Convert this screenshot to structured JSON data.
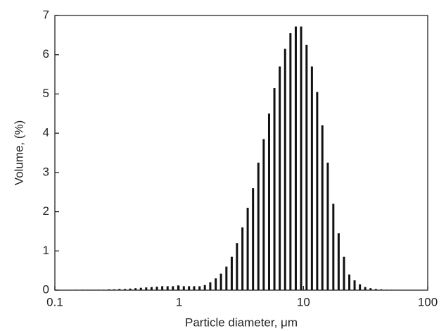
{
  "chart_data": {
    "type": "bar",
    "x_label": "Particle diameter, μm",
    "y_label": "Volume, (%)",
    "x": [
      0.15,
      0.166,
      0.183,
      0.202,
      0.223,
      0.246,
      0.272,
      0.3,
      0.331,
      0.366,
      0.404,
      0.446,
      0.492,
      0.543,
      0.6,
      0.662,
      0.731,
      0.807,
      0.891,
      0.984,
      1.09,
      1.2,
      1.32,
      1.46,
      1.61,
      1.78,
      1.97,
      2.17,
      2.4,
      2.65,
      2.92,
      3.23,
      3.56,
      3.93,
      4.34,
      4.79,
      5.29,
      5.84,
      6.45,
      7.12,
      7.86,
      8.68,
      9.58,
      10.6,
      11.7,
      12.9,
      14.2,
      15.7,
      17.4,
      19.2,
      21.2,
      23.4,
      25.8,
      28.5,
      31.4,
      34.7,
      38.3,
      42.3,
      46.7,
      51.6
    ],
    "values": [
      0.01,
      0.01,
      0.01,
      0.01,
      0.01,
      0.01,
      0.02,
      0.02,
      0.03,
      0.03,
      0.04,
      0.05,
      0.06,
      0.07,
      0.08,
      0.09,
      0.1,
      0.1,
      0.1,
      0.12,
      0.1,
      0.1,
      0.1,
      0.1,
      0.13,
      0.2,
      0.3,
      0.42,
      0.6,
      0.85,
      1.2,
      1.6,
      2.1,
      2.6,
      3.25,
      3.85,
      4.5,
      5.15,
      5.7,
      6.15,
      6.55,
      6.72,
      6.72,
      6.25,
      5.7,
      5.05,
      4.2,
      3.25,
      2.2,
      1.45,
      0.85,
      0.4,
      0.25,
      0.15,
      0.08,
      0.05,
      0.03,
      0.02,
      0.01,
      0.01
    ],
    "color": "#111111",
    "x_scale": "log",
    "xlim": [
      0.1,
      100
    ],
    "xticks": [
      0.1,
      1,
      10,
      100
    ],
    "ylim": [
      0,
      7
    ],
    "yticks": [
      0,
      1,
      2,
      3,
      4,
      5,
      6,
      7
    ]
  }
}
